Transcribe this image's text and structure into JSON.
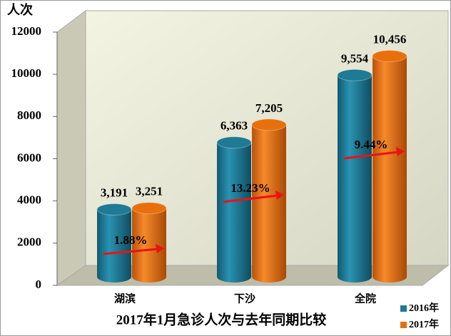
{
  "chart_data": {
    "type": "bar",
    "title": "2017年1月急诊人次与去年同期比较",
    "y_label": "人次",
    "categories": [
      "湖滨",
      "下沙",
      "全院"
    ],
    "series": [
      {
        "name": "2016年",
        "color": "#1f7a95",
        "values": [
          3191,
          6363,
          9554
        ],
        "value_labels": [
          "3,191",
          "6,363",
          "9,554"
        ]
      },
      {
        "name": "2017年",
        "color": "#e8700c",
        "values": [
          3251,
          7205,
          10456
        ],
        "value_labels": [
          "3,251",
          "7,205",
          "10,456"
        ]
      }
    ],
    "annotations": [
      "1.88%",
      "13.23%",
      "9.44%"
    ],
    "ylim": [
      0,
      12000
    ],
    "yticks": [
      0,
      2000,
      4000,
      6000,
      8000,
      10000,
      12000
    ]
  }
}
